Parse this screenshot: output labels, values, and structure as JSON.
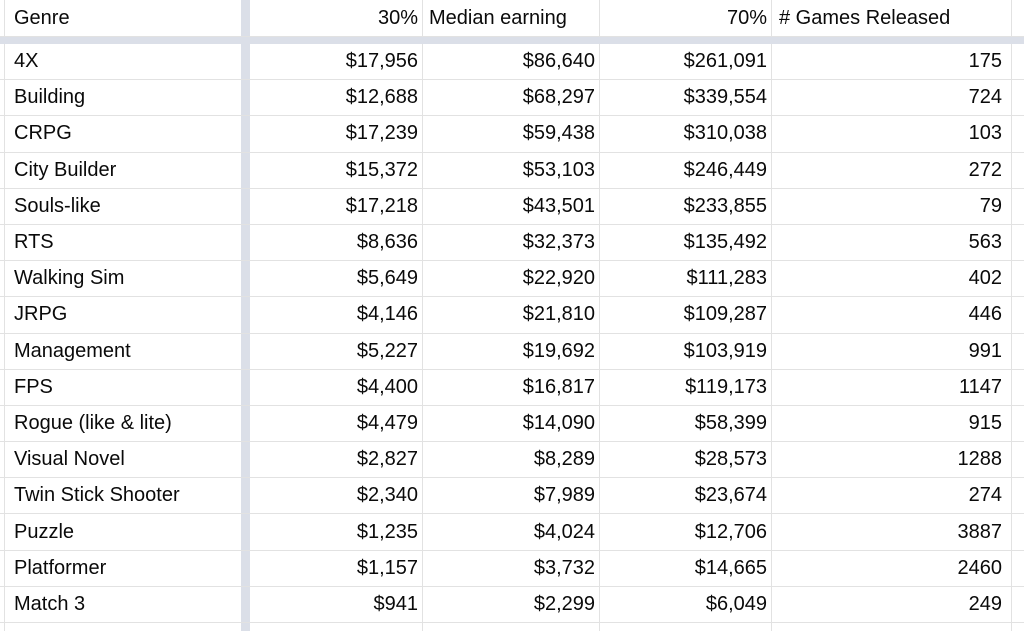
{
  "table": {
    "columns": [
      {
        "id": "genre",
        "label": "Genre"
      },
      {
        "id": "p30",
        "label": "30%"
      },
      {
        "id": "median",
        "label": "Median earning"
      },
      {
        "id": "p70",
        "label": "70%"
      },
      {
        "id": "games",
        "label": "# Games Released"
      }
    ],
    "rows": [
      {
        "genre": "4X",
        "p30": "$17,956",
        "median": "$86,640",
        "p70": "$261,091",
        "games": "175"
      },
      {
        "genre": "Building",
        "p30": "$12,688",
        "median": "$68,297",
        "p70": "$339,554",
        "games": "724"
      },
      {
        "genre": "CRPG",
        "p30": "$17,239",
        "median": "$59,438",
        "p70": "$310,038",
        "games": "103"
      },
      {
        "genre": "City Builder",
        "p30": "$15,372",
        "median": "$53,103",
        "p70": "$246,449",
        "games": "272"
      },
      {
        "genre": "Souls-like",
        "p30": "$17,218",
        "median": "$43,501",
        "p70": "$233,855",
        "games": "79"
      },
      {
        "genre": "RTS",
        "p30": "$8,636",
        "median": "$32,373",
        "p70": "$135,492",
        "games": "563"
      },
      {
        "genre": "Walking Sim",
        "p30": "$5,649",
        "median": "$22,920",
        "p70": "$111,283",
        "games": "402"
      },
      {
        "genre": "JRPG",
        "p30": "$4,146",
        "median": "$21,810",
        "p70": "$109,287",
        "games": "446"
      },
      {
        "genre": "Management",
        "p30": "$5,227",
        "median": "$19,692",
        "p70": "$103,919",
        "games": "991"
      },
      {
        "genre": "FPS",
        "p30": "$4,400",
        "median": "$16,817",
        "p70": "$119,173",
        "games": "1147"
      },
      {
        "genre": "Rogue (like & lite)",
        "p30": "$4,479",
        "median": "$14,090",
        "p70": "$58,399",
        "games": "915"
      },
      {
        "genre": "Visual Novel",
        "p30": "$2,827",
        "median": "$8,289",
        "p70": "$28,573",
        "games": "1288"
      },
      {
        "genre": "Twin Stick Shooter",
        "p30": "$2,340",
        "median": "$7,989",
        "p70": "$23,674",
        "games": "274"
      },
      {
        "genre": "Puzzle",
        "p30": "$1,235",
        "median": "$4,024",
        "p70": "$12,706",
        "games": "3887"
      },
      {
        "genre": "Platformer",
        "p30": "$1,157",
        "median": "$3,732",
        "p70": "$14,665",
        "games": "2460"
      },
      {
        "genre": "Match 3",
        "p30": "$941",
        "median": "$2,299",
        "p70": "$6,049",
        "games": "249"
      }
    ]
  },
  "colors": {
    "gridline": "#e2e2e2",
    "frozen_divider": "#dbdfe8",
    "background": "#ffffff",
    "text": "#0a0a0a"
  }
}
